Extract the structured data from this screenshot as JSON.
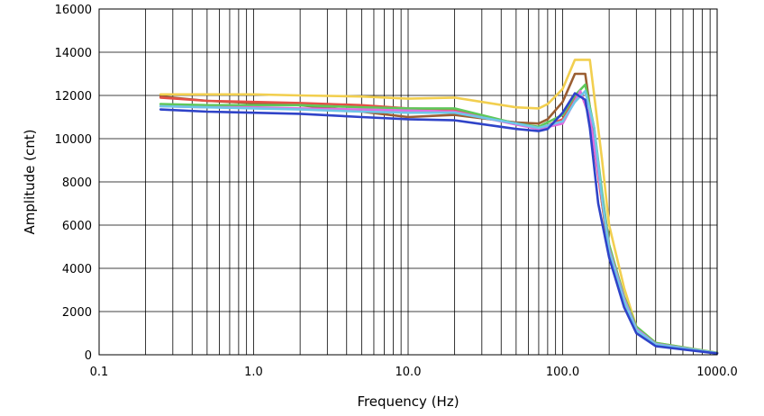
{
  "chart_data": {
    "type": "line",
    "title": "",
    "xlabel": "Frequency (Hz)",
    "ylabel": "Amplitude (cnt)",
    "xscale": "log",
    "xlim": [
      0.1,
      1000
    ],
    "ylim": [
      0,
      16000
    ],
    "grid": true,
    "x_ticks": [
      0.1,
      1,
      10,
      100,
      1000
    ],
    "x_tick_labels": [
      "0.1",
      "1.0",
      "10.0",
      "100.0",
      "1000.0"
    ],
    "y_ticks": [
      0,
      2000,
      4000,
      6000,
      8000,
      10000,
      12000,
      14000,
      16000
    ],
    "y_tick_labels": [
      "0",
      "2000",
      "4000",
      "6000",
      "8000",
      "10000",
      "12000",
      "14000",
      "16000"
    ],
    "series": [
      {
        "color": "#f2cf4f",
        "x": [
          0.25,
          0.5,
          1,
          2,
          5,
          10,
          20,
          50,
          70,
          80,
          100,
          120,
          150,
          180,
          200,
          250,
          300,
          400,
          1000
        ],
        "y": [
          12050,
          12050,
          12050,
          12000,
          11950,
          11850,
          11900,
          11450,
          11400,
          11600,
          12300,
          13650,
          13650,
          9000,
          6000,
          3100,
          1300,
          550,
          90
        ]
      },
      {
        "color": "#9b5e32",
        "x": [
          0.25,
          0.5,
          1,
          2,
          5,
          10,
          20,
          50,
          70,
          80,
          100,
          120,
          140,
          160,
          180,
          200,
          250,
          300,
          400,
          1000
        ],
        "y": [
          11950,
          11750,
          11650,
          11550,
          11250,
          11000,
          11100,
          10750,
          10700,
          10900,
          11700,
          13000,
          13000,
          10000,
          7000,
          4600,
          2500,
          1150,
          500,
          80
        ]
      },
      {
        "color": "#e35046",
        "x": [
          0.25,
          0.5,
          1,
          2,
          5,
          10,
          20,
          50,
          70,
          100,
          130,
          150,
          180,
          200,
          250,
          300,
          400,
          1000
        ],
        "y": [
          11900,
          11750,
          11700,
          11650,
          11550,
          11400,
          11350,
          10700,
          10450,
          10900,
          12200,
          11000,
          7000,
          4800,
          2600,
          1200,
          500,
          80
        ]
      },
      {
        "color": "#5ec859",
        "x": [
          0.25,
          0.5,
          1,
          2,
          5,
          10,
          20,
          50,
          70,
          100,
          120,
          140,
          160,
          180,
          200,
          250,
          300,
          400,
          1000
        ],
        "y": [
          11600,
          11550,
          11550,
          11550,
          11450,
          11400,
          11400,
          10700,
          10550,
          11100,
          12000,
          12500,
          10500,
          7500,
          5100,
          2700,
          1300,
          550,
          90
        ]
      },
      {
        "color": "#e06ce0",
        "x": [
          0.25,
          0.5,
          1,
          2,
          5,
          10,
          20,
          50,
          70,
          100,
          130,
          150,
          180,
          200,
          250,
          300,
          400,
          1000
        ],
        "y": [
          11500,
          11450,
          11450,
          11400,
          11350,
          11300,
          11250,
          10650,
          10450,
          10700,
          12200,
          11000,
          7200,
          4900,
          2600,
          1200,
          500,
          80
        ]
      },
      {
        "color": "#6fc6e8",
        "x": [
          0.25,
          0.5,
          1,
          2,
          5,
          10,
          20,
          50,
          70,
          100,
          120,
          140,
          160,
          180,
          200,
          250,
          300,
          400,
          1000
        ],
        "y": [
          11500,
          11450,
          11400,
          11350,
          11250,
          11200,
          11200,
          10700,
          10500,
          10800,
          11700,
          12200,
          10500,
          7200,
          4800,
          2500,
          1150,
          480,
          80
        ]
      },
      {
        "color": "#2f43c8",
        "x": [
          0.25,
          0.5,
          1,
          2,
          5,
          10,
          20,
          50,
          70,
          80,
          100,
          120,
          140,
          150,
          170,
          200,
          250,
          300,
          400,
          1000
        ],
        "y": [
          11350,
          11250,
          11200,
          11150,
          11000,
          10900,
          10850,
          10450,
          10350,
          10450,
          11200,
          12100,
          11800,
          10500,
          7000,
          4500,
          2200,
          1000,
          400,
          60
        ]
      }
    ]
  }
}
